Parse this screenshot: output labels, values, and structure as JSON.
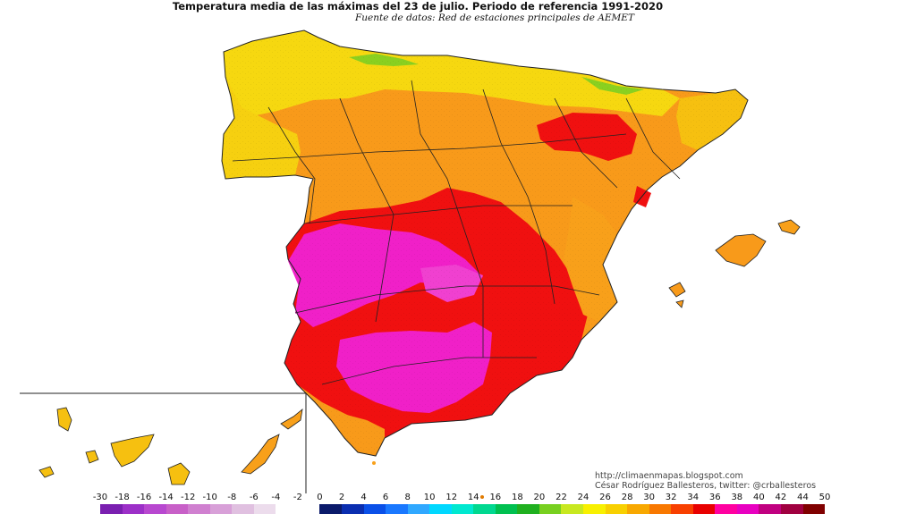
{
  "title": "Temperatura media de las máximas del 23 de julio. Periodo de referencia 1991-2020",
  "subtitle": "Fuente de datos: Red de estaciones principales de AEMET",
  "credits": {
    "blog": "http://climaenmapas.blogspot.com",
    "author": "César Rodríguez Ballesteros, twitter: @crballesteros"
  },
  "legend": {
    "ticks": [
      "-30",
      "-18",
      "-16",
      "-14",
      "-12",
      "-10",
      "-8",
      "-6",
      "-4",
      "-2",
      "0",
      "2",
      "4",
      "6",
      "8",
      "10",
      "12",
      "14",
      "16",
      "18",
      "20",
      "22",
      "24",
      "26",
      "28",
      "30",
      "32",
      "34",
      "36",
      "38",
      "40",
      "42",
      "44",
      "50"
    ],
    "colors": [
      "#7a1fb0",
      "#9c30c8",
      "#b848d0",
      "#c860c8",
      "#d080d0",
      "#d8a0d8",
      "#e0c0e0",
      "#ecdcec",
      "#ffffff",
      "#ffffff",
      "#0a1a6a",
      "#0a2eb0",
      "#0a50e8",
      "#1a78ff",
      "#30a8ff",
      "#00d8ff",
      "#00e8d0",
      "#00d890",
      "#00c050",
      "#20b020",
      "#78d020",
      "#c8e820",
      "#f8f000",
      "#f8d000",
      "#f8a800",
      "#f87800",
      "#f84000",
      "#e80000",
      "#ff00a0",
      "#e800c0",
      "#c00080",
      "#a00040",
      "#800000"
    ]
  },
  "regions": {
    "peninsula": "Península Ibérica",
    "balearic": "Illes Balears",
    "canary": "Islas Canarias"
  }
}
